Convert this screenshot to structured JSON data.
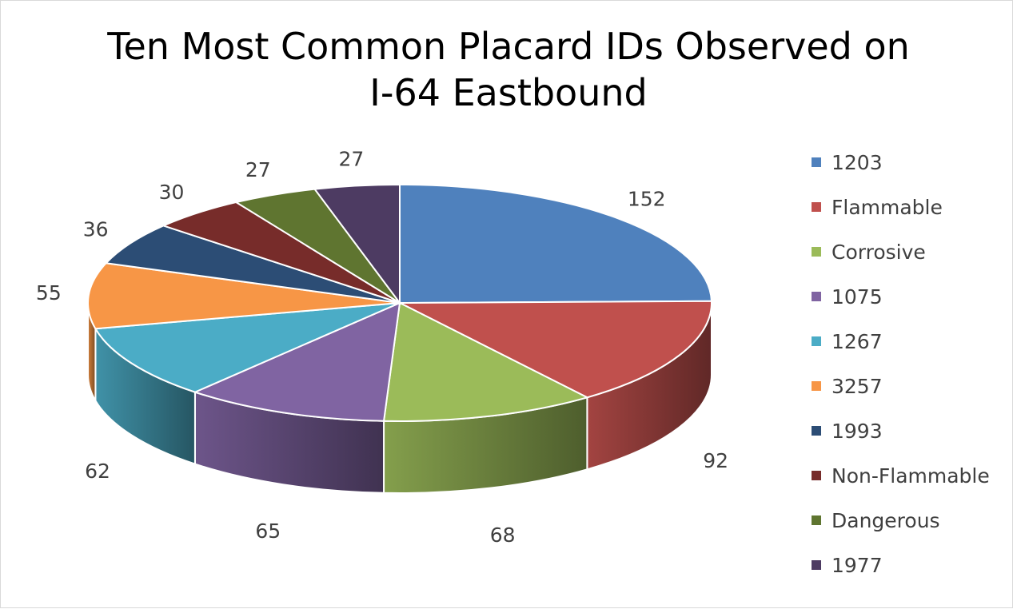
{
  "chart_data": {
    "type": "pie",
    "title": [
      "Ten Most Common Placard IDs Observed on",
      "I-64 Eastbound"
    ],
    "categories": [
      "1203",
      "Flammable",
      "Corrosive",
      "1075",
      "1267",
      "3257",
      "1993",
      "Non-Flammable",
      "Dangerous",
      "1977"
    ],
    "values": [
      152,
      92,
      68,
      65,
      62,
      55,
      36,
      30,
      27,
      27
    ],
    "colors": [
      "#4f81bd",
      "#c0504d",
      "#9bbb59",
      "#8064a2",
      "#4bacc6",
      "#f79646",
      "#2c4d75",
      "#772c2a",
      "#5f7530",
      "#4d3b62"
    ],
    "labels": [
      "152",
      "92",
      "68",
      "65",
      "62",
      "55",
      "36",
      "30",
      "27",
      "27"
    ],
    "legend_position": "right",
    "style": "3d"
  }
}
